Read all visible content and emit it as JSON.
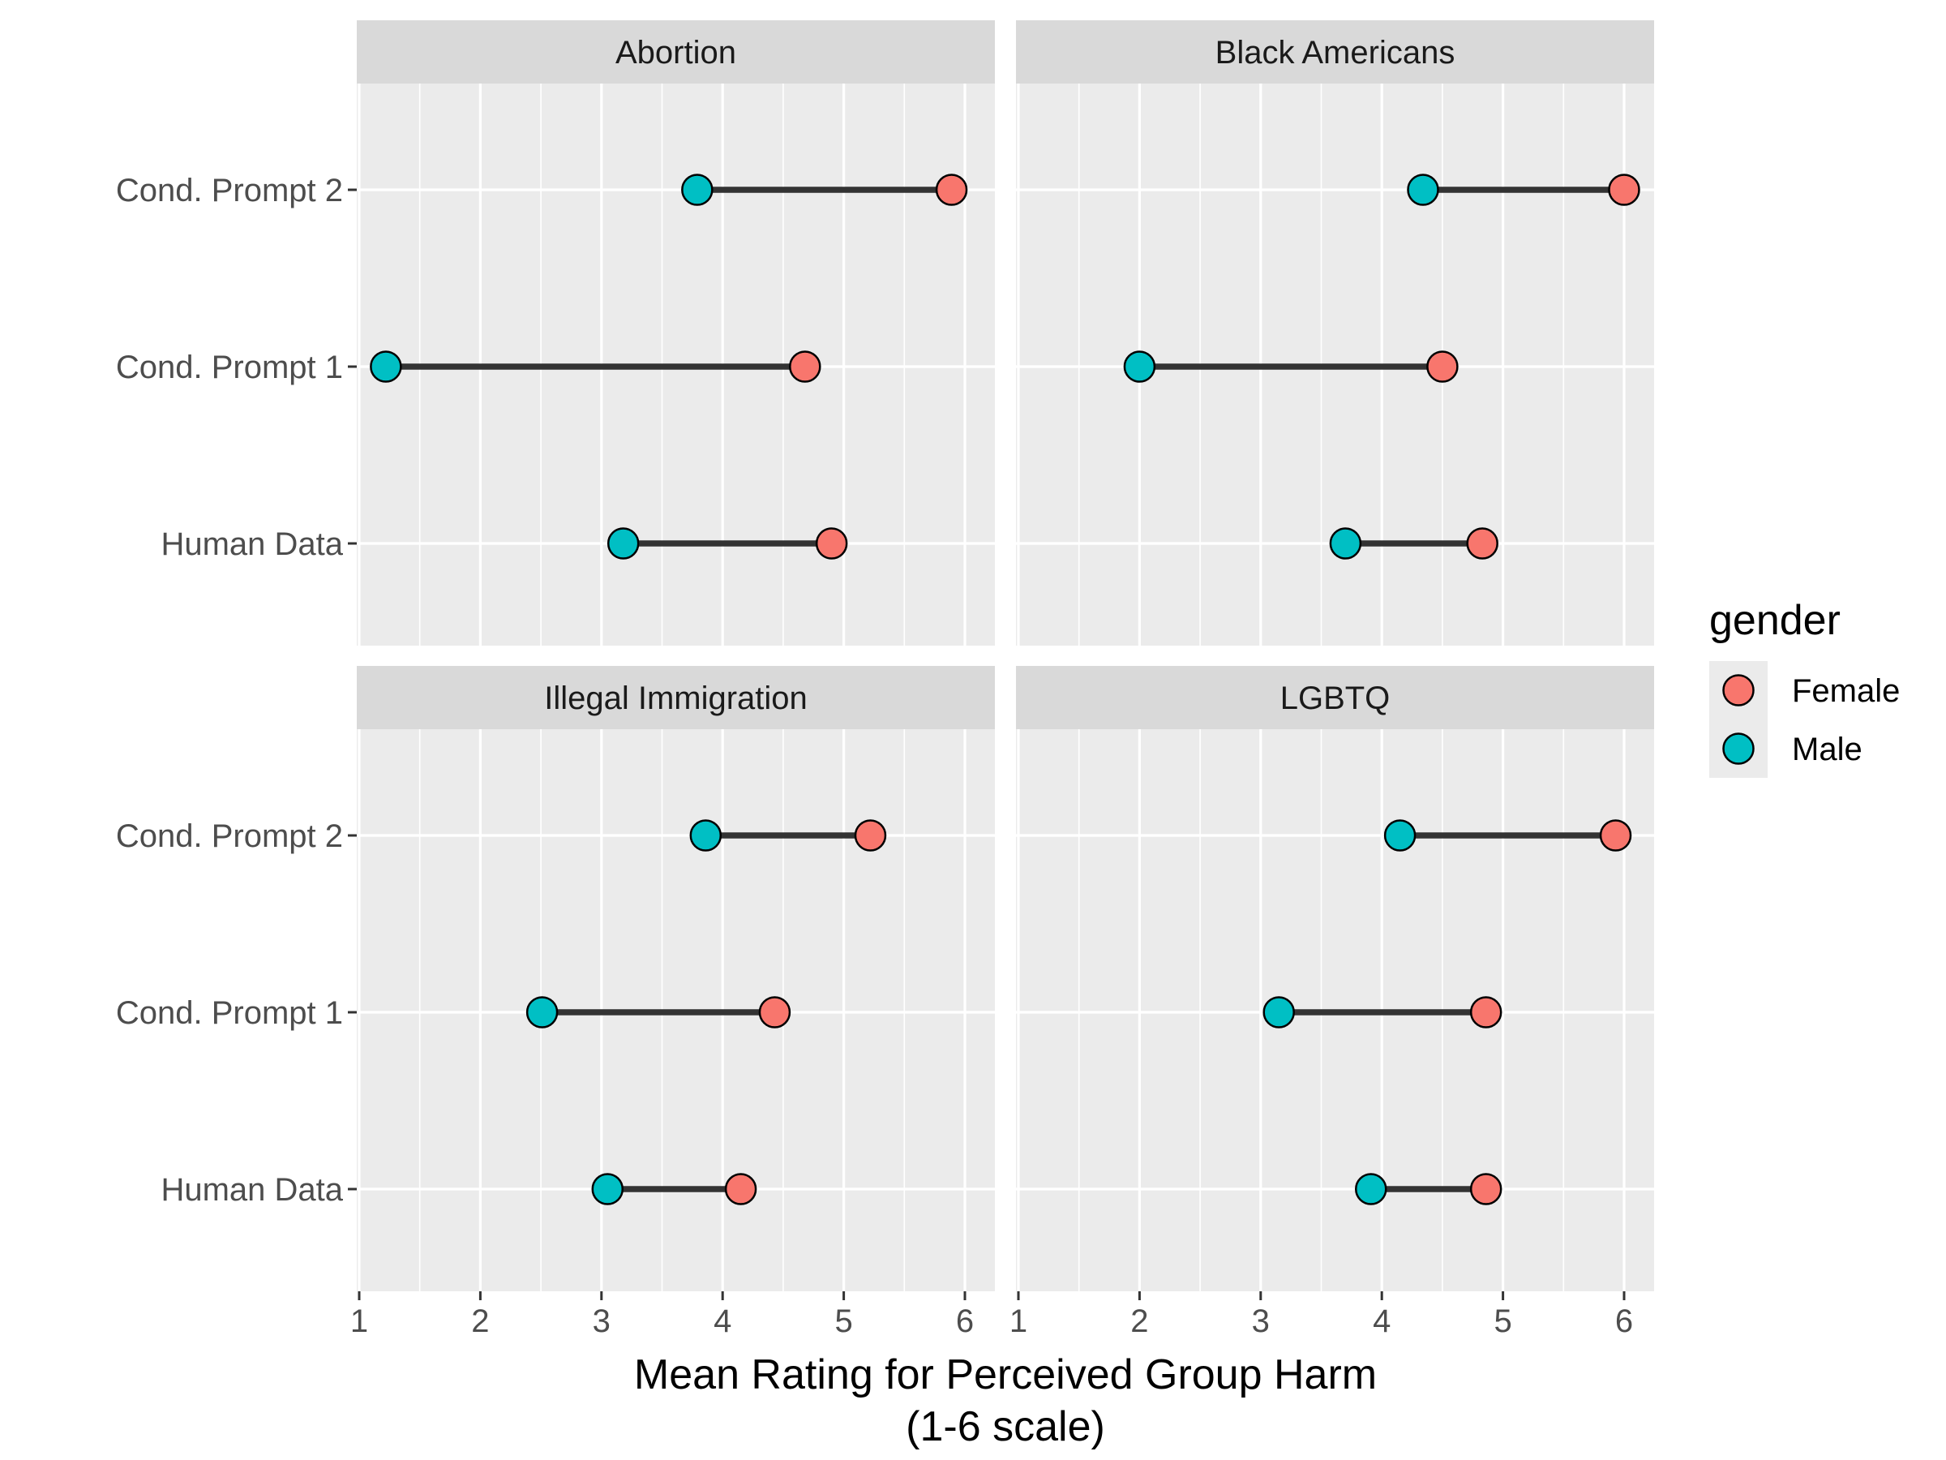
{
  "chart_data": {
    "type": "dumbbell",
    "xlabel_line1": "Mean Rating for Perceived Group Harm",
    "xlabel_line2": "(1-6 scale)",
    "xlim": [
      1,
      6
    ],
    "x_ticks": [
      "1",
      "2",
      "3",
      "4",
      "5",
      "6"
    ],
    "categories": [
      "Cond. Prompt 2",
      "Cond. Prompt 1",
      "Human Data"
    ],
    "grid": true,
    "legend": {
      "title": "gender",
      "position": "right",
      "entries": [
        {
          "name": "Female",
          "color": "#f8766d"
        },
        {
          "name": "Male",
          "color": "#00bfc4"
        }
      ]
    },
    "panels": [
      {
        "title": "Abortion",
        "rows": [
          {
            "category": "Cond. Prompt 2",
            "Female": 5.89,
            "Male": 3.79
          },
          {
            "category": "Cond. Prompt 1",
            "Female": 4.68,
            "Male": 1.22
          },
          {
            "category": "Human Data",
            "Female": 4.9,
            "Male": 3.18
          }
        ]
      },
      {
        "title": "Black Americans",
        "rows": [
          {
            "category": "Cond. Prompt 2",
            "Female": 6.0,
            "Male": 4.34
          },
          {
            "category": "Cond. Prompt 1",
            "Female": 4.5,
            "Male": 2.0
          },
          {
            "category": "Human Data",
            "Female": 4.83,
            "Male": 3.7
          }
        ]
      },
      {
        "title": "Illegal Immigration",
        "rows": [
          {
            "category": "Cond. Prompt 2",
            "Female": 5.22,
            "Male": 3.86
          },
          {
            "category": "Cond. Prompt 1",
            "Female": 4.43,
            "Male": 2.51
          },
          {
            "category": "Human Data",
            "Female": 4.15,
            "Male": 3.05
          }
        ]
      },
      {
        "title": "LGBTQ",
        "rows": [
          {
            "category": "Cond. Prompt 2",
            "Female": 5.93,
            "Male": 4.15
          },
          {
            "category": "Cond. Prompt 1",
            "Female": 4.86,
            "Male": 3.15
          },
          {
            "category": "Human Data",
            "Female": 4.86,
            "Male": 3.91
          }
        ]
      }
    ]
  }
}
